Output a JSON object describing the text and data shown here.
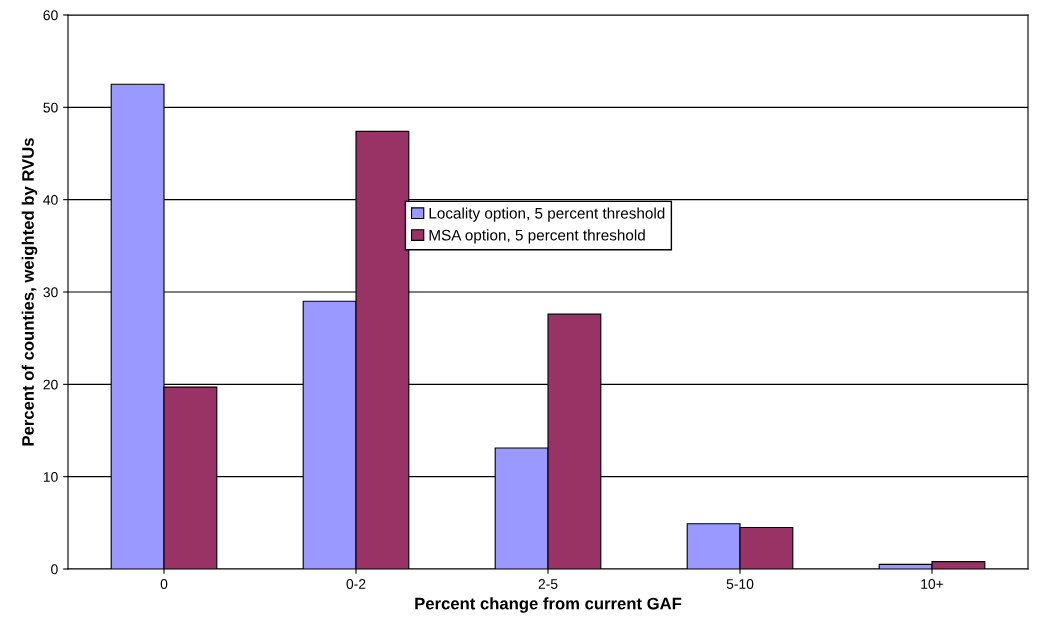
{
  "chart_data": {
    "type": "bar",
    "xlabel": "Percent change from current GAF",
    "ylabel": "Percent of counties, weighted by RVUs",
    "categories": [
      "0",
      "0-2",
      "2-5",
      "5-10",
      "10+"
    ],
    "series": [
      {
        "name": "Locality option, 5 percent threshold",
        "color": "#9999ff",
        "values": [
          52.5,
          29.0,
          13.1,
          4.9,
          0.5
        ]
      },
      {
        "name": "MSA option, 5 percent threshold",
        "color": "#993366",
        "values": [
          19.7,
          47.4,
          27.6,
          4.5,
          0.8
        ]
      }
    ],
    "ylim": [
      0,
      60
    ],
    "yticks": [
      0,
      10,
      20,
      30,
      40,
      50,
      60
    ],
    "grid": "y",
    "legend": "center"
  }
}
